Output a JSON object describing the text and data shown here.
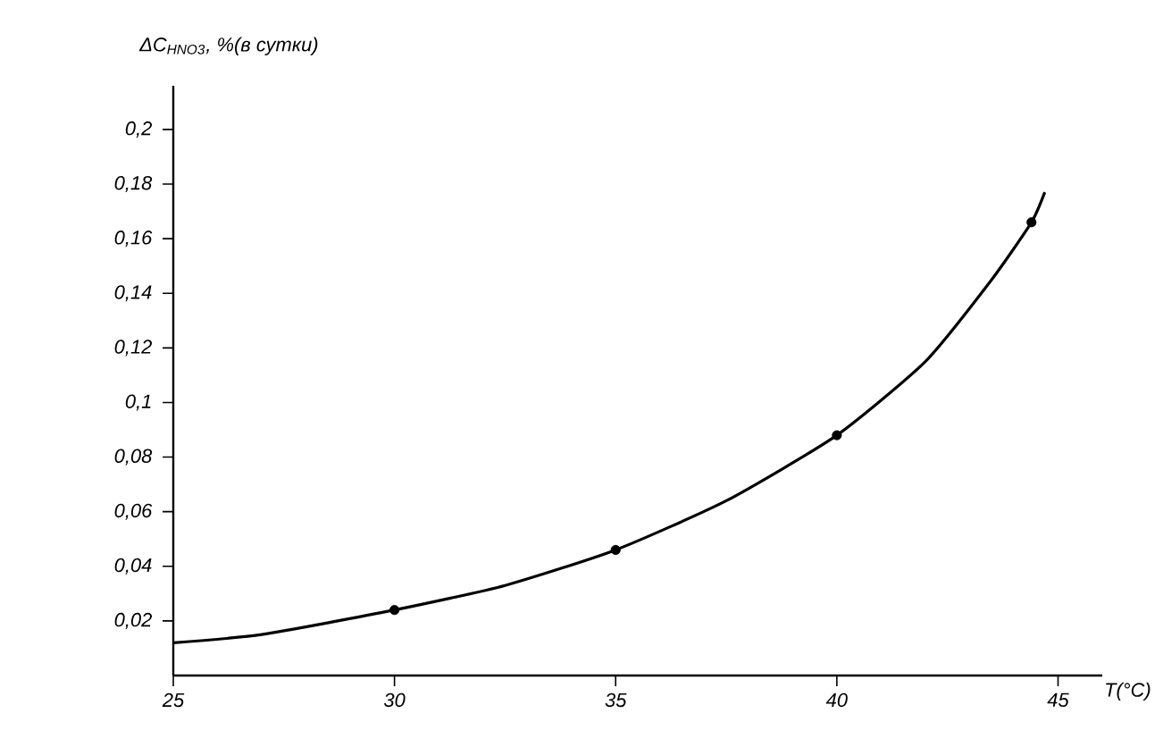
{
  "chart_data": {
    "type": "line",
    "xlabel": "T(°C)",
    "ylabel": "ΔC$_{HNO3}$, %(в сутки)",
    "xlim": [
      25,
      46
    ],
    "ylim": [
      0,
      0.216
    ],
    "xticks": [
      25,
      30,
      35,
      40,
      45
    ],
    "yticks": [
      {
        "value": 0.02,
        "label": "0,02"
      },
      {
        "value": 0.04,
        "label": "0,04"
      },
      {
        "value": 0.06,
        "label": "0,06"
      },
      {
        "value": 0.08,
        "label": "0,08"
      },
      {
        "value": 0.1,
        "label": "0,1"
      },
      {
        "value": 0.12,
        "label": "0,12"
      },
      {
        "value": 0.14,
        "label": "0,14"
      },
      {
        "value": 0.16,
        "label": "0,16"
      },
      {
        "value": 0.18,
        "label": "0,18"
      },
      {
        "value": 0.2,
        "label": "0,2"
      }
    ],
    "grid": false,
    "series": [
      {
        "color": "#000000",
        "marker": "none",
        "line_style": "solid",
        "x": [
          25,
          27,
          30,
          32.5,
          35,
          37.5,
          40,
          42,
          43.5,
          44.4,
          44.7
        ],
        "values": [
          0.012,
          0.015,
          0.024,
          0.033,
          0.046,
          0.064,
          0.088,
          0.115,
          0.145,
          0.166,
          0.177
        ]
      },
      {
        "type": "scatter",
        "color": "#000000",
        "marker": "circle",
        "x": [
          30,
          35,
          40,
          44.4
        ],
        "values": [
          0.024,
          0.046,
          0.088,
          0.166
        ]
      }
    ]
  }
}
